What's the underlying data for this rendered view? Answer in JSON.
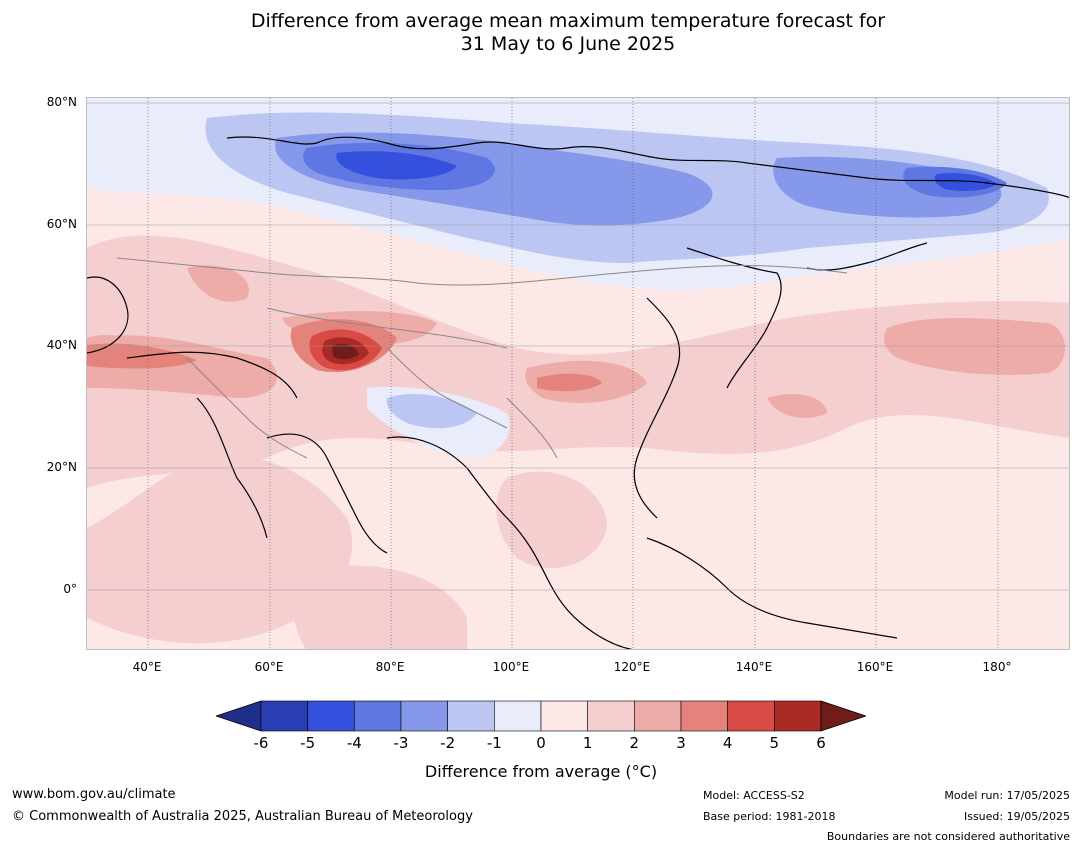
{
  "title": {
    "line1": "Difference from average mean maximum temperature forecast for",
    "line2": "31 May to 6 June 2025"
  },
  "map": {
    "lat_labels": [
      "80°N",
      "60°N",
      "40°N",
      "20°N",
      "0°"
    ],
    "lon_labels": [
      "40°E",
      "60°E",
      "80°E",
      "100°E",
      "120°E",
      "140°E",
      "160°E",
      "180°"
    ]
  },
  "colorbar": {
    "ticks": [
      "-6",
      "-5",
      "-4",
      "-3",
      "-2",
      "-1",
      "0",
      "1",
      "2",
      "3",
      "4",
      "5",
      "6"
    ],
    "label": "Difference from average (°C)",
    "colors": [
      "#1f2e86",
      "#2a3fb4",
      "#3450dc",
      "#5f77e3",
      "#8698ea",
      "#bcc6f2",
      "#e9ecfb",
      "#fce8e7",
      "#f5cfcf",
      "#eeaca9",
      "#e4827c",
      "#d84a43",
      "#a92a24",
      "#6f1c1a"
    ]
  },
  "footer": {
    "site": "www.bom.gov.au/climate",
    "copyright": "© Commonwealth of Australia 2025, Australian Bureau of Meteorology",
    "model": "Model: ACCESS-S2",
    "base_period": "Base period: 1981-2018",
    "model_run": "Model run: 17/05/2025",
    "issued": "Issued: 19/05/2025",
    "disclaimer": "Boundaries are not considered authoritative"
  }
}
